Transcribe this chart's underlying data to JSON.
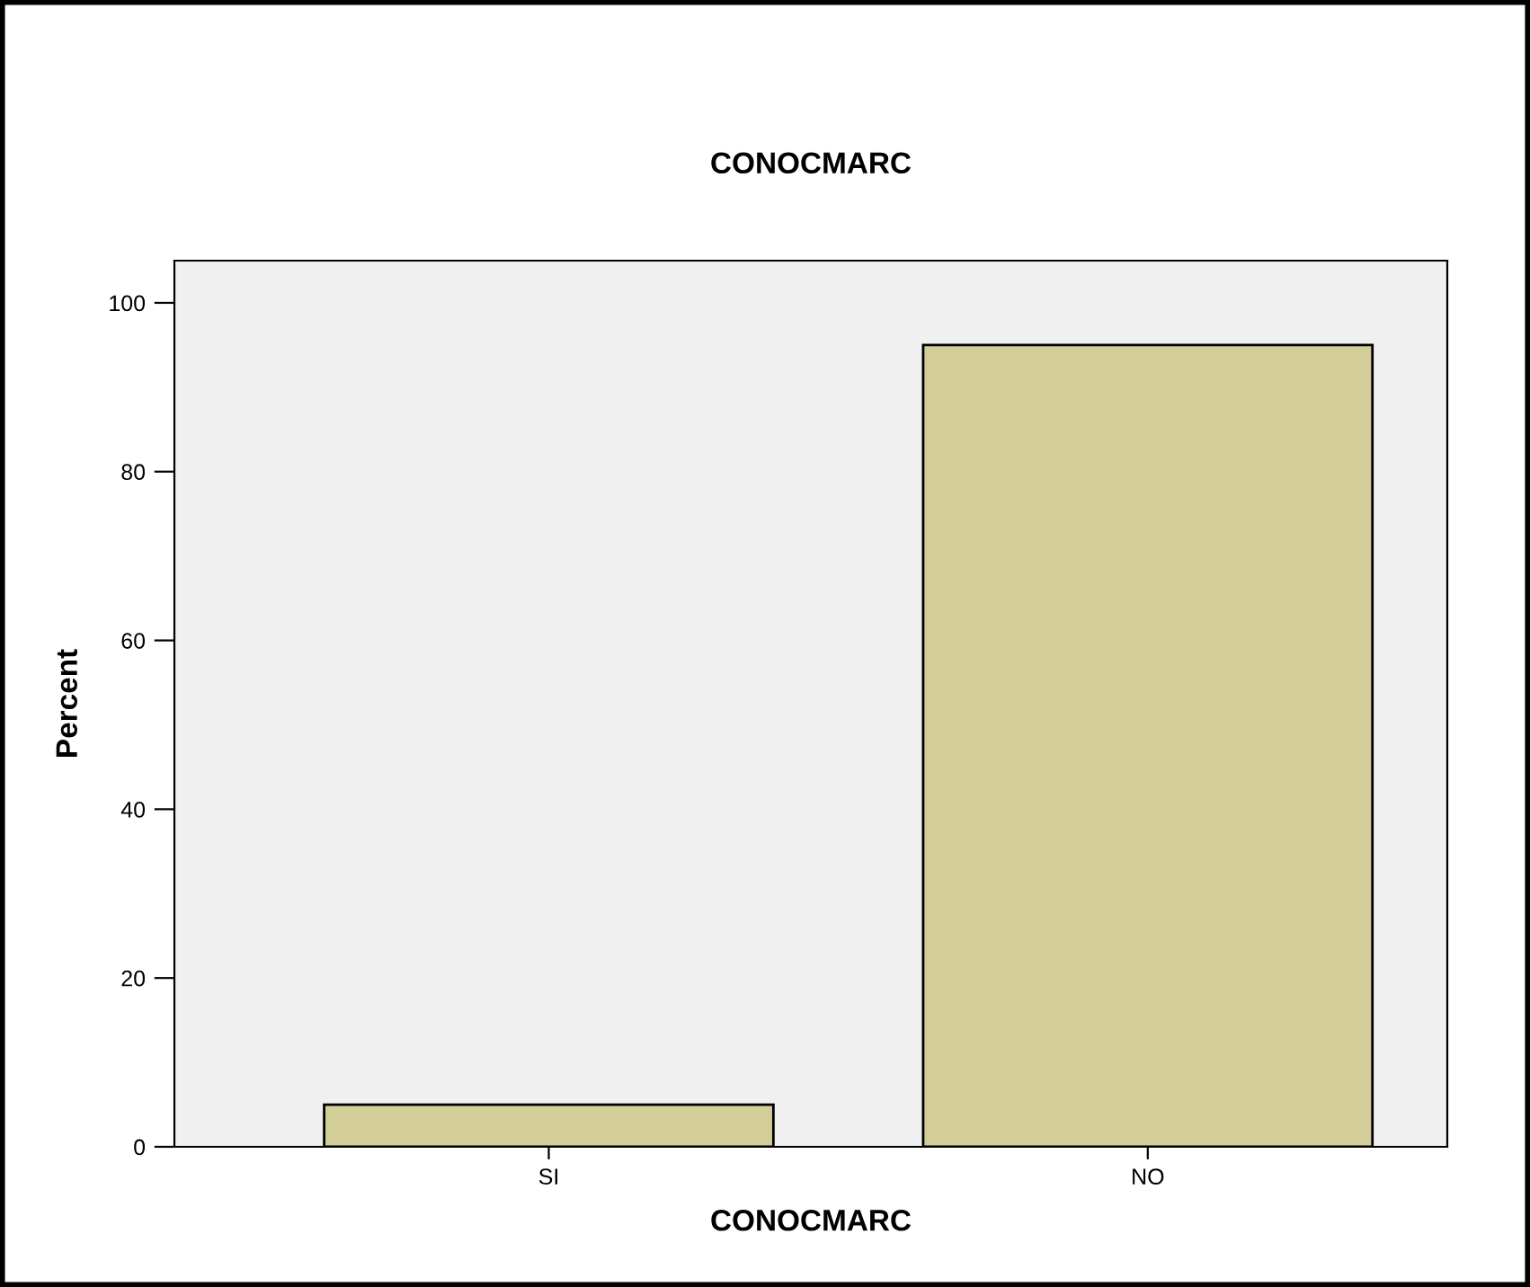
{
  "chart_data": {
    "type": "bar",
    "title": "CONOCMARC",
    "xlabel": "CONOCMARC",
    "ylabel": "Percent",
    "categories": [
      "SI",
      "NO"
    ],
    "values": [
      5,
      95
    ],
    "color": "#d3ce97",
    "ylim": [
      0,
      105
    ],
    "yticks": [
      0,
      20,
      40,
      60,
      80,
      100
    ],
    "grid": false
  }
}
